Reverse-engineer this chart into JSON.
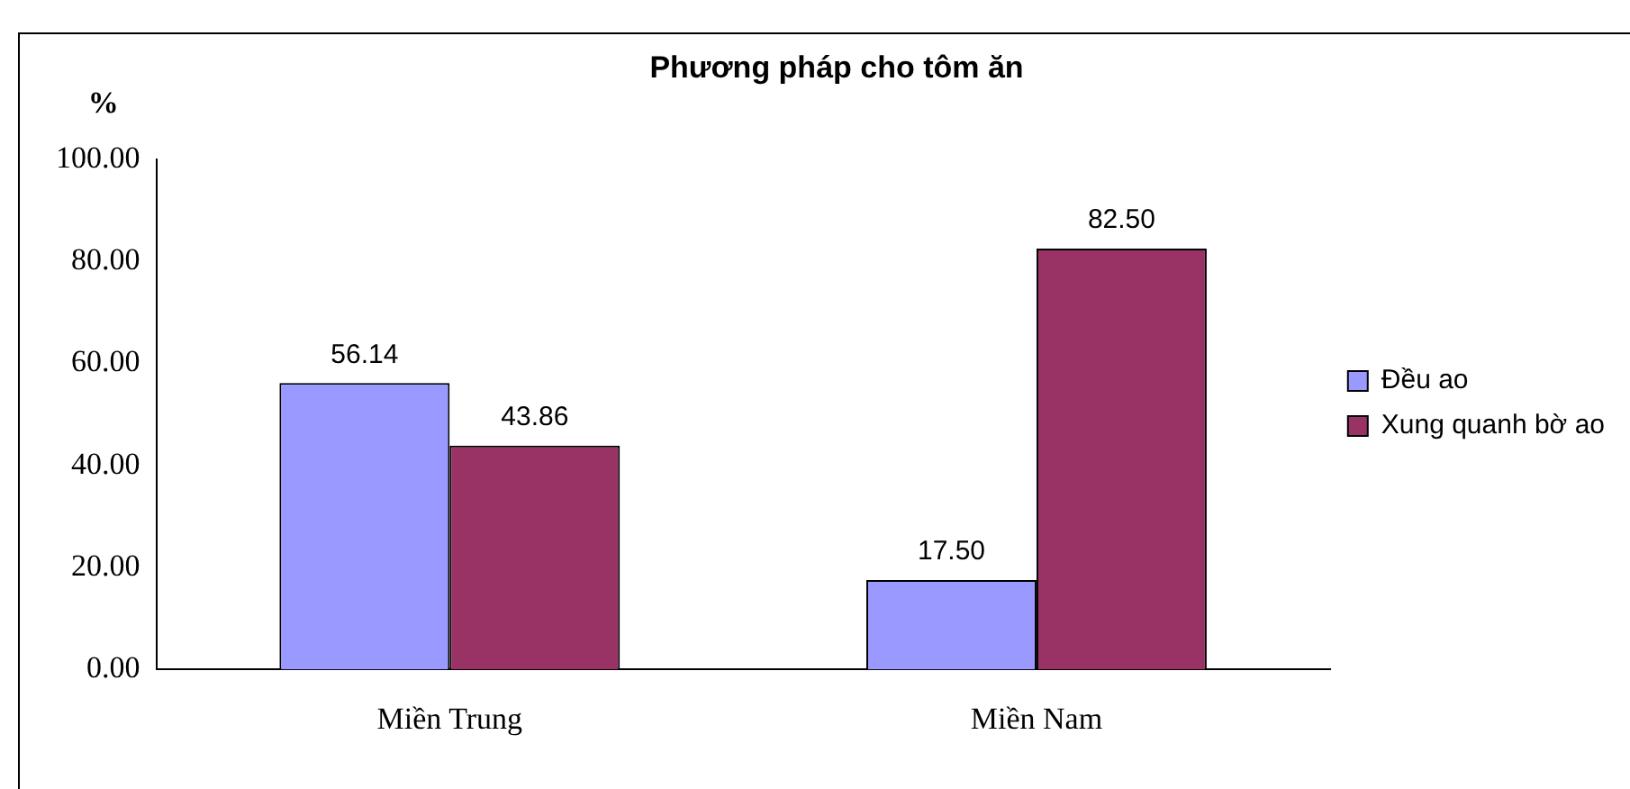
{
  "chart_data": {
    "type": "bar",
    "title": "Phương pháp cho tôm ăn",
    "ylabel": "%",
    "categories": [
      "Miền Trung",
      "Miền Nam"
    ],
    "series": [
      {
        "name": "Đều ao",
        "color": "#9999ff",
        "values": [
          56.14,
          17.5
        ],
        "value_labels": [
          "56.14",
          "17.50"
        ]
      },
      {
        "name": "Xung quanh bờ ao",
        "color": "#993366",
        "values": [
          43.86,
          82.5
        ],
        "value_labels": [
          "43.86",
          "82.50"
        ]
      }
    ],
    "ylim": [
      0,
      100
    ],
    "yticks": [
      {
        "value": 0,
        "label": "0.00"
      },
      {
        "value": 20,
        "label": "20.00"
      },
      {
        "value": 40,
        "label": "40.00"
      },
      {
        "value": 60,
        "label": "60.00"
      },
      {
        "value": 80,
        "label": "80.00"
      },
      {
        "value": 100,
        "label": "100.00"
      }
    ],
    "grid": false,
    "legend": "right"
  }
}
